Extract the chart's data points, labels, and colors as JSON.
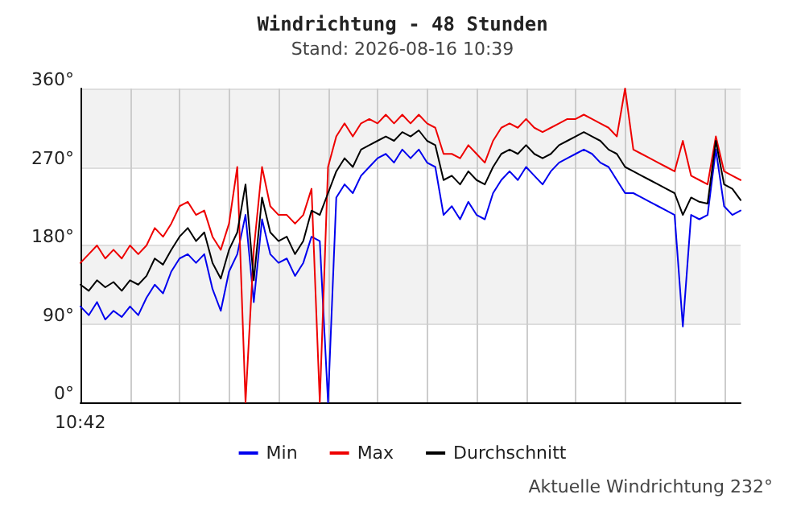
{
  "chart_data": {
    "type": "line",
    "title": "Windrichtung - 48 Stunden",
    "subtitle": "Stand: 2026-08-16 10:39",
    "annotations": [
      "Aktuelle Windrichtung 232°",
      "10:42"
    ],
    "categories": [
      null,
      null,
      null,
      null,
      null,
      null,
      null,
      null,
      null,
      null,
      null,
      null,
      null,
      null,
      null,
      null,
      null,
      null,
      null,
      null,
      null,
      null,
      null,
      null,
      null,
      null,
      null,
      null,
      null,
      null,
      null,
      null,
      null,
      null,
      null,
      null,
      null,
      null,
      null,
      null,
      null,
      null,
      null,
      null,
      null,
      null,
      null,
      null,
      null,
      null,
      null,
      null,
      null,
      null,
      null,
      null,
      null,
      null,
      null,
      null,
      null,
      null,
      null,
      null,
      null,
      null,
      null,
      null,
      null,
      null,
      null,
      null,
      null,
      null,
      null,
      null,
      null,
      null,
      null,
      null,
      null
    ],
    "series": [
      {
        "name": "Min",
        "color": "#0000ee",
        "values": [
          110,
          100,
          115,
          95,
          105,
          98,
          110,
          100,
          120,
          135,
          125,
          150,
          165,
          170,
          160,
          170,
          130,
          105,
          150,
          170,
          215,
          115,
          210,
          170,
          160,
          165,
          145,
          160,
          190,
          185,
          0,
          235,
          250,
          240,
          260,
          270,
          280,
          285,
          275,
          290,
          280,
          290,
          275,
          270,
          215,
          225,
          210,
          230,
          215,
          210,
          240,
          255,
          265,
          255,
          270,
          260,
          250,
          265,
          275,
          280,
          285,
          290,
          285,
          275,
          270,
          255,
          240,
          240,
          235,
          230,
          225,
          220,
          215,
          87,
          215,
          210,
          215,
          290,
          225,
          215,
          220
        ]
      },
      {
        "name": "Max",
        "color": "#ee0000",
        "values": [
          160,
          170,
          180,
          165,
          175,
          165,
          180,
          170,
          180,
          200,
          190,
          205,
          225,
          230,
          215,
          220,
          190,
          175,
          205,
          270,
          0,
          175,
          270,
          225,
          215,
          215,
          205,
          215,
          245,
          0,
          270,
          305,
          320,
          305,
          320,
          325,
          320,
          330,
          320,
          330,
          320,
          330,
          320,
          315,
          285,
          285,
          280,
          295,
          285,
          275,
          300,
          315,
          320,
          315,
          325,
          315,
          310,
          315,
          320,
          325,
          325,
          330,
          325,
          320,
          315,
          305,
          360,
          290,
          285,
          280,
          275,
          270,
          265,
          300,
          260,
          255,
          250,
          305,
          265,
          260,
          255
        ]
      },
      {
        "name": "Durchschnitt",
        "color": "#000000",
        "values": [
          135,
          128,
          140,
          132,
          138,
          128,
          140,
          135,
          145,
          165,
          158,
          175,
          190,
          200,
          185,
          195,
          160,
          142,
          175,
          195,
          250,
          140,
          235,
          195,
          185,
          190,
          170,
          185,
          220,
          215,
          240,
          265,
          280,
          270,
          290,
          295,
          300,
          305,
          300,
          310,
          305,
          312,
          300,
          295,
          255,
          260,
          250,
          265,
          255,
          250,
          270,
          285,
          290,
          285,
          295,
          285,
          280,
          285,
          295,
          300,
          305,
          310,
          305,
          300,
          290,
          285,
          270,
          265,
          260,
          255,
          250,
          245,
          240,
          215,
          235,
          230,
          228,
          300,
          250,
          245,
          232
        ]
      }
    ],
    "ylim": [
      0,
      360
    ],
    "yticks": [
      {
        "value": 0,
        "label": "0°"
      },
      {
        "value": 90,
        "label": "90°"
      },
      {
        "value": 180,
        "label": "180°"
      },
      {
        "value": 270,
        "label": "270°"
      },
      {
        "value": 360,
        "label": "360°"
      }
    ],
    "grid": true,
    "legend": "bottom",
    "marker": "none",
    "line_style": "solid"
  }
}
